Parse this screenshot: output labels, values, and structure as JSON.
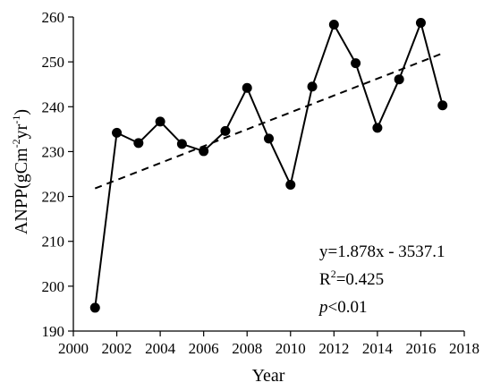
{
  "chart_data": {
    "type": "line",
    "xlabel": "Year",
    "ylabel": {
      "base": "ANPP(gCm",
      "sup1": "-2",
      "mid": "yr",
      "sup2": "-1",
      "end": ")"
    },
    "xlim": [
      2000,
      2018
    ],
    "ylim": [
      190,
      260
    ],
    "xticks": [
      2000,
      2002,
      2004,
      2006,
      2008,
      2010,
      2012,
      2014,
      2016,
      2018
    ],
    "yticks": [
      190,
      200,
      210,
      220,
      230,
      240,
      250,
      260
    ],
    "grid": false,
    "series": [
      {
        "x": [
          2001,
          2002,
          2003,
          2004,
          2005,
          2006,
          2007,
          2008,
          2009,
          2010,
          2011,
          2012,
          2013,
          2014,
          2015,
          2016,
          2017
        ],
        "values": [
          195.2,
          234.2,
          231.9,
          236.7,
          231.7,
          230.1,
          234.6,
          244.2,
          232.9,
          222.6,
          244.5,
          258.3,
          249.7,
          235.3,
          246.1,
          258.7,
          240.3
        ],
        "style": "solid-line-with-filled-circles",
        "color": "#000000"
      }
    ],
    "trendline": {
      "style": "dashed",
      "color": "#000000",
      "x_start": 2001,
      "x_end": 2017,
      "y_start": 221.8,
      "y_end": 251.9
    },
    "annotations": {
      "equation": "y=1.878x - 3537.1",
      "r2_base": "R",
      "r2_sup": "2",
      "r2_value": "=0.425",
      "p_symbol": "p",
      "p_value": "<0.01"
    }
  }
}
